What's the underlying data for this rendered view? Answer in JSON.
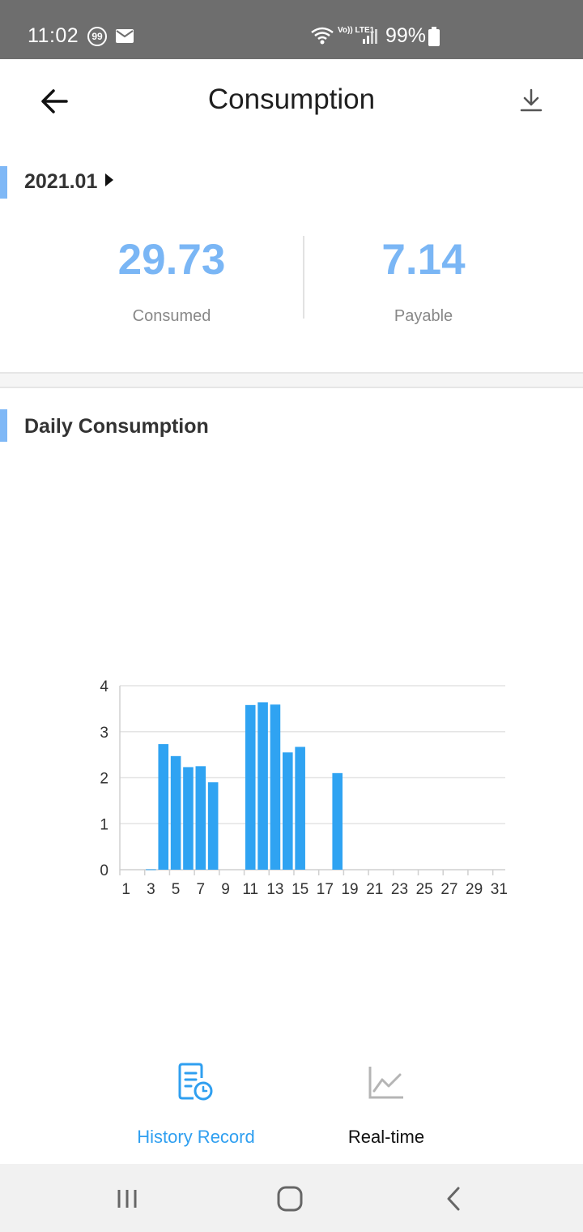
{
  "status_bar": {
    "time": "11:02",
    "notification_badge": "99",
    "network": "Vo)) LTE1",
    "battery": "99%"
  },
  "header": {
    "title": "Consumption",
    "back_icon": "arrow-left-icon",
    "download_icon": "download-icon"
  },
  "summary": {
    "month": "2021.01",
    "consumed_value": "29.73",
    "consumed_label": "Consumed",
    "payable_value": "7.14",
    "payable_label": "Payable"
  },
  "daily": {
    "title": "Daily Consumption"
  },
  "chart_data": {
    "type": "bar",
    "x": [
      1,
      2,
      3,
      4,
      5,
      6,
      7,
      8,
      9,
      10,
      11,
      12,
      13,
      14,
      15,
      16,
      17,
      18,
      19,
      20,
      21,
      22,
      23,
      24,
      25,
      26,
      27,
      28,
      29,
      30,
      31
    ],
    "values": [
      0,
      0,
      0.01,
      2.73,
      2.47,
      2.23,
      2.25,
      1.9,
      0,
      0,
      3.58,
      3.64,
      3.59,
      2.55,
      2.67,
      0,
      0,
      2.1,
      0,
      0,
      0,
      0,
      0,
      0,
      0,
      0,
      0,
      0,
      0,
      0,
      0
    ],
    "x_tick_labels": [
      "1",
      "3",
      "5",
      "7",
      "9",
      "11",
      "13",
      "15",
      "17",
      "19",
      "21",
      "23",
      "25",
      "27",
      "29",
      "31"
    ],
    "y_ticks": [
      0,
      1,
      2,
      3,
      4
    ],
    "ylim": [
      0,
      4
    ],
    "grid": true,
    "bar_color": "#2fa3f2"
  },
  "tabs": [
    {
      "label": "History Record",
      "icon": "history-record-icon",
      "active": true
    },
    {
      "label": "Real-time",
      "icon": "line-chart-icon",
      "active": false
    }
  ],
  "nav": {
    "recents_icon": "recents-icon",
    "home_icon": "home-icon",
    "back_icon": "nav-back-icon"
  }
}
